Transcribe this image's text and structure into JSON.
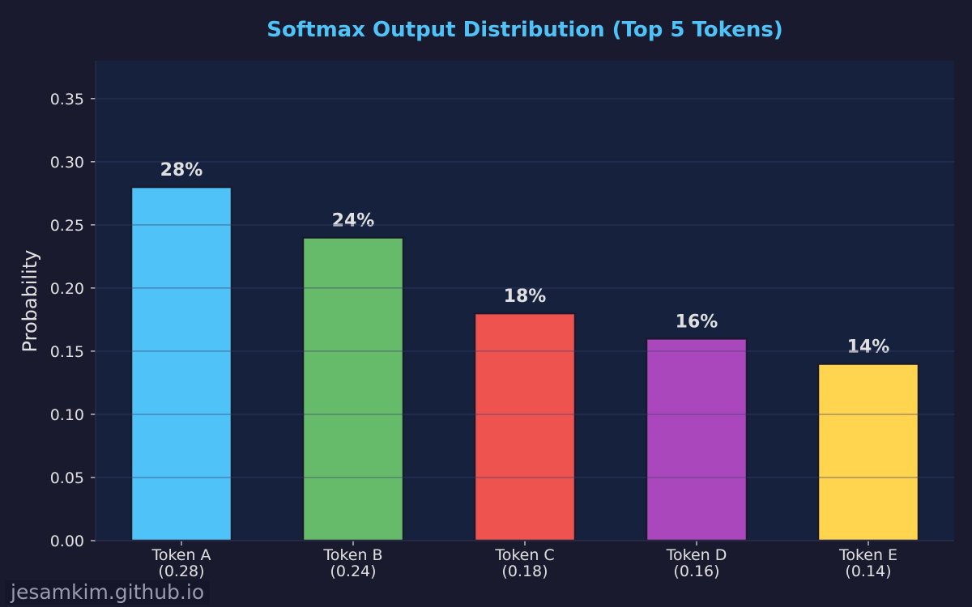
{
  "chart_data": {
    "type": "bar",
    "title": "Softmax Output Distribution (Top 5 Tokens)",
    "xlabel": "",
    "ylabel": "Probability",
    "categories": [
      "Token A\n(0.28)",
      "Token B\n(0.24)",
      "Token C\n(0.18)",
      "Token D\n(0.16)",
      "Token E\n(0.14)"
    ],
    "values": [
      0.28,
      0.24,
      0.18,
      0.16,
      0.14
    ],
    "data_labels": [
      "28%",
      "24%",
      "18%",
      "16%",
      "14%"
    ],
    "colors": [
      "#4fc3f7",
      "#66bb6a",
      "#ef5350",
      "#ab47bc",
      "#ffd54f"
    ],
    "ylim": [
      0,
      0.38
    ],
    "yticks": [
      "0.00",
      "0.05",
      "0.10",
      "0.15",
      "0.20",
      "0.25",
      "0.30",
      "0.35"
    ],
    "grid": true,
    "title_color": "#4fc3f7",
    "background": "#1a1a2e",
    "plot_background": "#16213e"
  },
  "watermark": "jesamkim.github.io"
}
